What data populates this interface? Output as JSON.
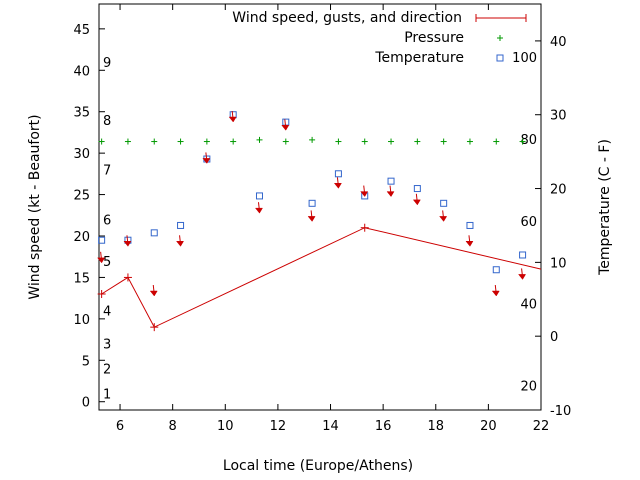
{
  "chart_data": {
    "type": "line",
    "xlabel": "Local time (Europe/Athens)",
    "ylabel": "Wind speed (kt - Beaufort)",
    "y2label": "Temperature (C - F)",
    "xlim": [
      5.2,
      22
    ],
    "ylim": [
      -1,
      48
    ],
    "y2lim": [
      -10,
      45
    ],
    "x_ticks": [
      "6",
      "8",
      "10",
      "12",
      "14",
      "16",
      "18",
      "20",
      "22"
    ],
    "y_ticks": [
      "0",
      "5",
      "10",
      "15",
      "20",
      "25",
      "30",
      "35",
      "40",
      "45"
    ],
    "y2_ticks": [
      "-10",
      "0",
      "10",
      "20",
      "30",
      "40"
    ],
    "beaufort_labels": [
      {
        "text": "1",
        "y": 1
      },
      {
        "text": "2",
        "y": 4
      },
      {
        "text": "3",
        "y": 7
      },
      {
        "text": "4",
        "y": 11
      },
      {
        "text": "5",
        "y": 17
      },
      {
        "text": "6",
        "y": 22
      },
      {
        "text": "7",
        "y": 28
      },
      {
        "text": "8",
        "y": 34
      },
      {
        "text": "9",
        "y": 41
      }
    ],
    "fahrenheit_labels": [
      {
        "text": "20",
        "y2": -6.7
      },
      {
        "text": "40",
        "y2": 4.4
      },
      {
        "text": "60",
        "y2": 15.6
      },
      {
        "text": "80",
        "y2": 26.7
      },
      {
        "text": "100",
        "y2": 37.8
      }
    ],
    "legend": {
      "placement": "top-right",
      "wind": "Wind speed, gusts, and direction",
      "pressure": "Pressure",
      "temperature": "Temperature"
    },
    "series": [
      {
        "name": "Wind speed, gusts, and direction",
        "color": "#cc0000",
        "x": [
          5.3,
          6.3,
          7.3,
          15.3,
          22
        ],
        "y": [
          13,
          15,
          9,
          21,
          16
        ]
      },
      {
        "name": "Pressure",
        "color": "#009900",
        "x": [
          5.3,
          6.3,
          7.3,
          8.3,
          9.3,
          10.3,
          11.3,
          12.3,
          13.3,
          14.3,
          15.3,
          16.3,
          17.3,
          18.3,
          19.3,
          20.3,
          21.3
        ],
        "y": [
          31.4,
          31.4,
          31.4,
          31.4,
          31.4,
          31.4,
          31.6,
          31.4,
          31.6,
          31.4,
          31.4,
          31.4,
          31.4,
          31.4,
          31.4,
          31.4,
          31.4
        ]
      },
      {
        "name": "Temperature",
        "color": "#3366cc",
        "x": [
          5.3,
          6.3,
          7.3,
          8.3,
          9.3,
          10.3,
          11.3,
          12.3,
          13.3,
          14.3,
          15.3,
          16.3,
          17.3,
          18.3,
          19.3,
          20.3,
          21.3
        ],
        "y2": [
          13,
          13,
          14,
          15,
          24,
          30,
          19,
          29,
          18,
          22,
          19,
          21,
          20,
          18,
          15,
          9,
          11
        ]
      }
    ],
    "wind_direction": {
      "color": "#cc0000",
      "x": [
        5.3,
        6.3,
        7.3,
        8.3,
        9.3,
        10.3,
        11.3,
        12.3,
        13.3,
        14.3,
        15.3,
        16.3,
        17.3,
        18.3,
        19.3,
        20.3,
        21.3
      ],
      "y": [
        17,
        19,
        13,
        19,
        29,
        34,
        23,
        33,
        22,
        26,
        25,
        25,
        24,
        22,
        19,
        13,
        15
      ]
    }
  }
}
